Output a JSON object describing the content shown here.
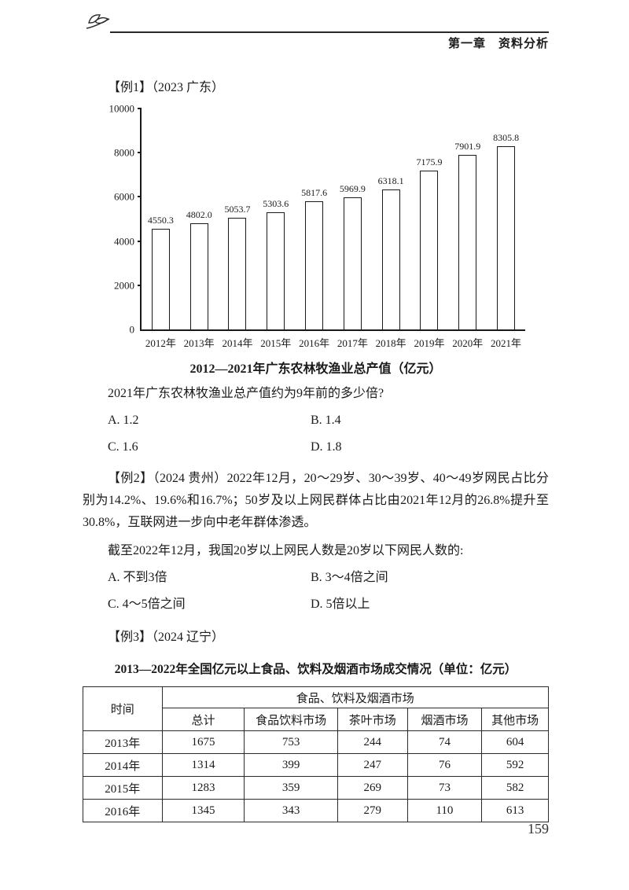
{
  "header": {
    "chapter_title": "第一章　资料分析"
  },
  "example1": {
    "label": "【例1】（2023 广东）",
    "chart_data": {
      "type": "bar",
      "title": "2012—2021年广东农林牧渔业总产值（亿元）",
      "categories": [
        "2012年",
        "2013年",
        "2014年",
        "2015年",
        "2016年",
        "2017年",
        "2018年",
        "2019年",
        "2020年",
        "2021年"
      ],
      "values": [
        4550.3,
        4802.0,
        5053.7,
        5303.6,
        5817.6,
        5969.9,
        6318.1,
        7175.9,
        7901.9,
        8305.8
      ],
      "value_labels": [
        "4550.3",
        "4802.0",
        "5053.7",
        "5303.6",
        "5817.6",
        "5969.9",
        "6318.1",
        "7175.9",
        "7901.9",
        "8305.8"
      ],
      "y_ticks": [
        0,
        2000,
        4000,
        6000,
        8000,
        10000
      ],
      "ylim": [
        0,
        10000
      ],
      "grid": false,
      "legend_position": "none",
      "xlabel": "",
      "ylabel": ""
    },
    "question": "2021年广东农林牧渔业总产值约为9年前的多少倍?",
    "options": [
      "A. 1.2",
      "B. 1.4",
      "C. 1.6",
      "D. 1.8"
    ]
  },
  "example2": {
    "label": "【例2】（2024 贵州）",
    "intro": "2022年12月，20～29岁、30～39岁、40～49岁网民占比分别为14.2%、19.6%和16.7%；50岁及以上网民群体占比由2021年12月的26.8%提升至30.8%，互联网进一步向中老年群体渗透。",
    "question": "截至2022年12月，我国20岁以上网民人数是20岁以下网民人数的:",
    "options": [
      "A. 不到3倍",
      "B. 3～4倍之间",
      "C. 4～5倍之间",
      "D. 5倍以上"
    ]
  },
  "example3": {
    "label": "【例3】（2024 辽宁）",
    "table_title": "2013—2022年全国亿元以上食品、饮料及烟酒市场成交情况（单位：亿元）",
    "table": {
      "time_header": "时间",
      "group_header": "食品、饮料及烟酒市场",
      "columns": [
        "总计",
        "食品饮料市场",
        "茶叶市场",
        "烟酒市场",
        "其他市场"
      ],
      "rows": [
        [
          "2013年",
          "1675",
          "753",
          "244",
          "74",
          "604"
        ],
        [
          "2014年",
          "1314",
          "399",
          "247",
          "76",
          "592"
        ],
        [
          "2015年",
          "1283",
          "359",
          "269",
          "73",
          "582"
        ],
        [
          "2016年",
          "1345",
          "343",
          "279",
          "110",
          "613"
        ]
      ]
    }
  },
  "footer": {
    "page_number": "159"
  }
}
